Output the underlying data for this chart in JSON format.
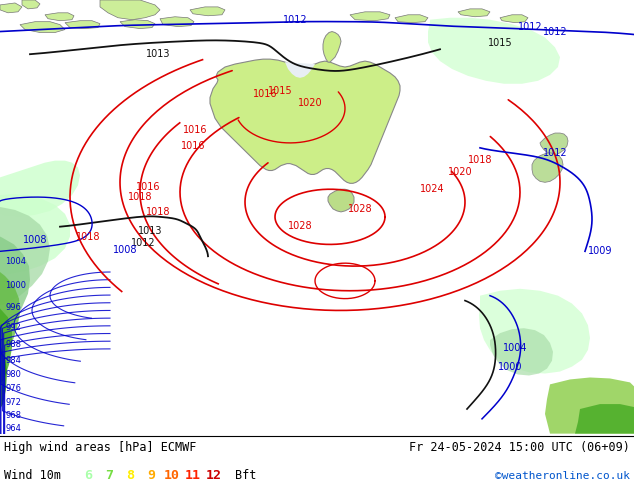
{
  "title_left": "High wind areas [hPa] ECMWF",
  "title_right": "Fr 24-05-2024 15:00 UTC (06+09)",
  "subtitle_left": "Wind 10m",
  "subtitle_right": "©weatheronline.co.uk",
  "legend_labels": [
    "6",
    "7",
    "8",
    "9",
    "10",
    "11",
    "12",
    "Bft"
  ],
  "legend_colors": [
    "#aaffaa",
    "#77dd44",
    "#ffee00",
    "#ffaa00",
    "#ff6600",
    "#ff2200",
    "#cc0000",
    "#000000"
  ],
  "background_color": "#ffffff",
  "ocean_color": "#e8eef4",
  "land_color": "#ccee88",
  "land_edge": "#888888",
  "figsize": [
    6.34,
    4.9
  ],
  "dpi": 100,
  "isobar_red_color": "#dd0000",
  "isobar_blue_color": "#0000cc",
  "isobar_black_color": "#111111",
  "wind_colors": {
    "bft6": "#ccffcc",
    "bft7": "#aaddaa",
    "bft8": "#88cc88",
    "bft9": "#66bb44",
    "bft10": "#44aa22",
    "bft11": "#228800",
    "bft12": "#004400"
  }
}
